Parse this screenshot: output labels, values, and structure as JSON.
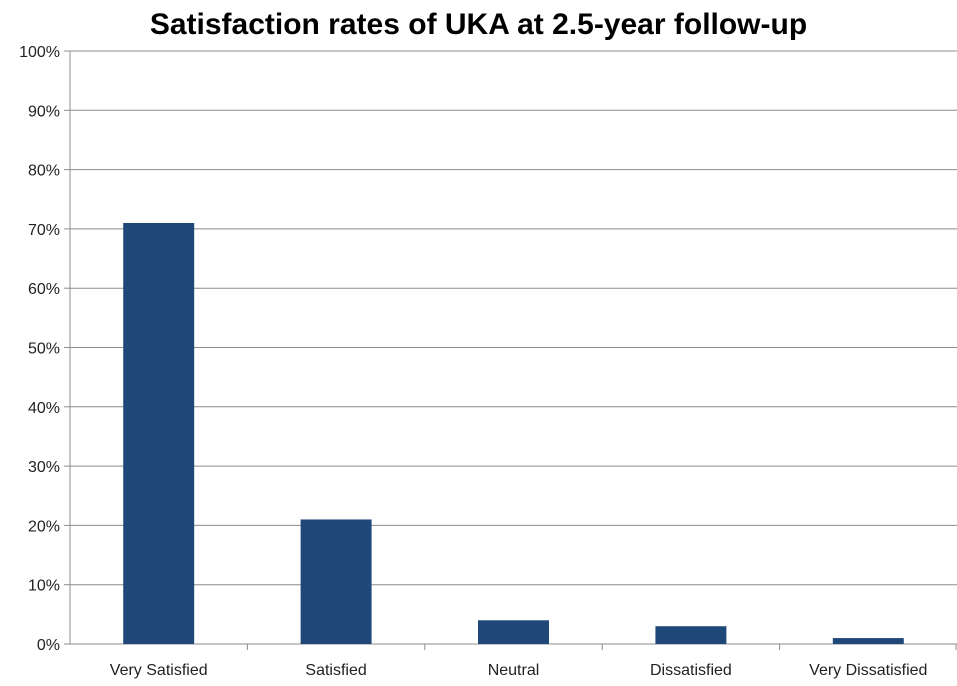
{
  "chart_data": {
    "type": "bar",
    "title": "Satisfaction rates of UKA at 2.5-year follow-up",
    "xlabel": "",
    "ylabel": "",
    "categories": [
      "Very Satisfied",
      "Satisfied",
      "Neutral",
      "Dissatisfied",
      "Very Dissatisfied"
    ],
    "values": [
      71,
      21,
      4,
      3,
      1
    ],
    "ylim": [
      0,
      100
    ],
    "yticks": [
      "0%",
      "10%",
      "20%",
      "30%",
      "40%",
      "50%",
      "60%",
      "70%",
      "80%",
      "90%",
      "100%"
    ],
    "grid": true,
    "legend": "none",
    "colors": {
      "bar": "#1f4778",
      "grid": "#8c8c8c",
      "axis": "#8c8c8c"
    }
  }
}
